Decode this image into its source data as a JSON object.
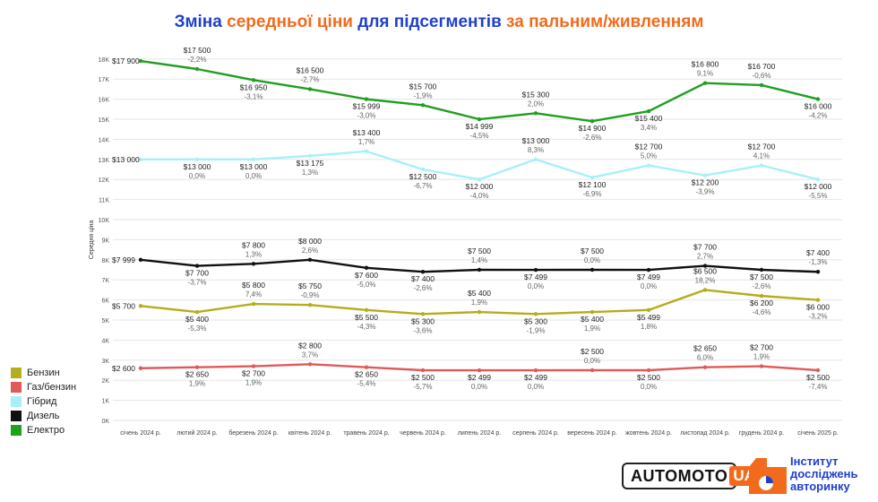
{
  "title": {
    "parts": [
      {
        "text": "Зміна ",
        "color": "#1e3fcf"
      },
      {
        "text": "середньої ціни",
        "color": "#f26a1b"
      },
      {
        "text": " для підсегментів ",
        "color": "#1e3fcf"
      },
      {
        "text": "за пальним/живленням",
        "color": "#f26a1b"
      }
    ]
  },
  "chart_data": {
    "type": "line",
    "ylabel": "Середня ціна",
    "ylim": [
      0,
      18000
    ],
    "yticks": [
      "0K",
      "1K",
      "2K",
      "3K",
      "4K",
      "5K",
      "6K",
      "7K",
      "8K",
      "9K",
      "10K",
      "11K",
      "12K",
      "13K",
      "14K",
      "15K",
      "16K",
      "17K",
      "18K"
    ],
    "grid": true,
    "legend_position": "bottom-left",
    "categories": [
      "січень 2024 р.",
      "лютий 2024 р.",
      "березень 2024 р.",
      "квітень 2024 р.",
      "травень 2024 р.",
      "червень 2024 р.",
      "липень 2024 р.",
      "серпень 2024 р.",
      "вересень 2024 р.",
      "жовтень 2024 р.",
      "листопад 2024 р.",
      "грудень 2024 р.",
      "січень 2025 р."
    ],
    "series": [
      {
        "name": "Бензин",
        "color": "#b5ad1a",
        "values": [
          5700,
          5400,
          5800,
          5750,
          5500,
          5300,
          5400,
          5300,
          5400,
          5499,
          6500,
          6200,
          6000
        ],
        "labels": [
          "$5 700",
          "$5 400",
          "$5 800",
          "$5 750",
          "$5 500",
          "$5 300",
          "$5 400",
          "$5 300",
          "$5 400",
          "$5 499",
          "$6 500",
          "$6 200",
          "$6 000"
        ],
        "changes": [
          "",
          "-5,3%",
          "7,4%",
          "-0,9%",
          "-4,3%",
          "-3,6%",
          "1,9%",
          "-1,9%",
          "1,9%",
          "1,8%",
          "18,2%",
          "-4,6%",
          "-3,2%"
        ]
      },
      {
        "name": "Газ/бензин",
        "color": "#e05a5a",
        "values": [
          2600,
          2650,
          2700,
          2800,
          2650,
          2500,
          2499,
          2499,
          2500,
          2500,
          2650,
          2700,
          2500
        ],
        "labels": [
          "$2 600",
          "$2 650",
          "$2 700",
          "$2 800",
          "$2 650",
          "$2 500",
          "$2 499",
          "$2 499",
          "$2 500",
          "$2 500",
          "$2 650",
          "$2 700",
          "$2 500"
        ],
        "changes": [
          "",
          "1,9%",
          "1,9%",
          "3,7%",
          "-5,4%",
          "-5,7%",
          "0,0%",
          "0,0%",
          "0,0%",
          "0,0%",
          "6,0%",
          "1,9%",
          "-7,4%"
        ]
      },
      {
        "name": "Гібрид",
        "color": "#a8f0f5",
        "values": [
          13000,
          13000,
          13000,
          13175,
          13400,
          12500,
          12000,
          13000,
          12100,
          12700,
          12200,
          12700,
          12000
        ],
        "labels": [
          "$13 000",
          "$13 000",
          "$13 000",
          "$13 175",
          "$13 400",
          "$12 500",
          "$12 000",
          "$13 000",
          "$12 100",
          "$12 700",
          "$12 200",
          "$12 700",
          "$12 000"
        ],
        "changes": [
          "",
          "0,0%",
          "0,0%",
          "1,3%",
          "1,7%",
          "-6,7%",
          "-4,0%",
          "8,3%",
          "-6,9%",
          "5,0%",
          "-3,9%",
          "4,1%",
          "-5,5%"
        ]
      },
      {
        "name": "Дизель",
        "color": "#111111",
        "values": [
          7999,
          7700,
          7800,
          8000,
          7600,
          7400,
          7500,
          7499,
          7500,
          7499,
          7700,
          7500,
          7400
        ],
        "labels": [
          "$7 999",
          "$7 700",
          "$7 800",
          "$8 000",
          "$7 600",
          "$7 400",
          "$7 500",
          "$7 499",
          "$7 500",
          "$7 499",
          "$7 700",
          "$7 500",
          "$7 400"
        ],
        "changes": [
          "",
          "-3,7%",
          "1,3%",
          "2,6%",
          "-5,0%",
          "-2,6%",
          "1,4%",
          "0,0%",
          "0,0%",
          "0,0%",
          "2,7%",
          "-2,6%",
          "-1,3%"
        ]
      },
      {
        "name": "Електро",
        "color": "#1fa01f",
        "values": [
          17900,
          17500,
          16950,
          16500,
          15999,
          15700,
          14999,
          15300,
          14900,
          15400,
          16800,
          16700,
          16000
        ],
        "labels": [
          "$17 900",
          "$17 500",
          "$16 950",
          "$16 500",
          "$15 999",
          "$15 700",
          "$14 999",
          "$15 300",
          "$14 900",
          "$15 400",
          "$16 800",
          "$16 700",
          "$16 000"
        ],
        "changes": [
          "",
          "-2,2%",
          "-3,1%",
          "-2,7%",
          "-3,0%",
          "-1,9%",
          "-4,5%",
          "2,0%",
          "-2,6%",
          "3,4%",
          "9,1%",
          "-0,6%",
          "-4,2%"
        ]
      }
    ],
    "label_positions": {
      "Бензин": [
        "r",
        "b",
        "a",
        "a",
        "b",
        "b",
        "a",
        "b",
        "b",
        "b",
        "a",
        "b",
        "b"
      ],
      "Газ/бензин": [
        "r",
        "b",
        "b",
        "a",
        "b",
        "b",
        "b",
        "b",
        "a",
        "b",
        "a",
        "a",
        "b"
      ],
      "Гібрид": [
        "l",
        "b",
        "b",
        "b",
        "a",
        "b",
        "b",
        "a",
        "b",
        "a",
        "b",
        "a",
        "b"
      ],
      "Дизель": [
        "l",
        "b",
        "a",
        "a",
        "b",
        "b",
        "a",
        "b",
        "a",
        "b",
        "a",
        "b",
        "a"
      ],
      "Електро": [
        "l",
        "a",
        "b",
        "a",
        "b",
        "a",
        "b",
        "a",
        "b",
        "b",
        "a",
        "a",
        "b"
      ]
    }
  },
  "logos": {
    "automoto_text": "AUTOMOTO",
    "automoto_ua": "UA",
    "institute_lines": [
      "Інститут",
      "досліджень",
      "авторинку"
    ]
  }
}
